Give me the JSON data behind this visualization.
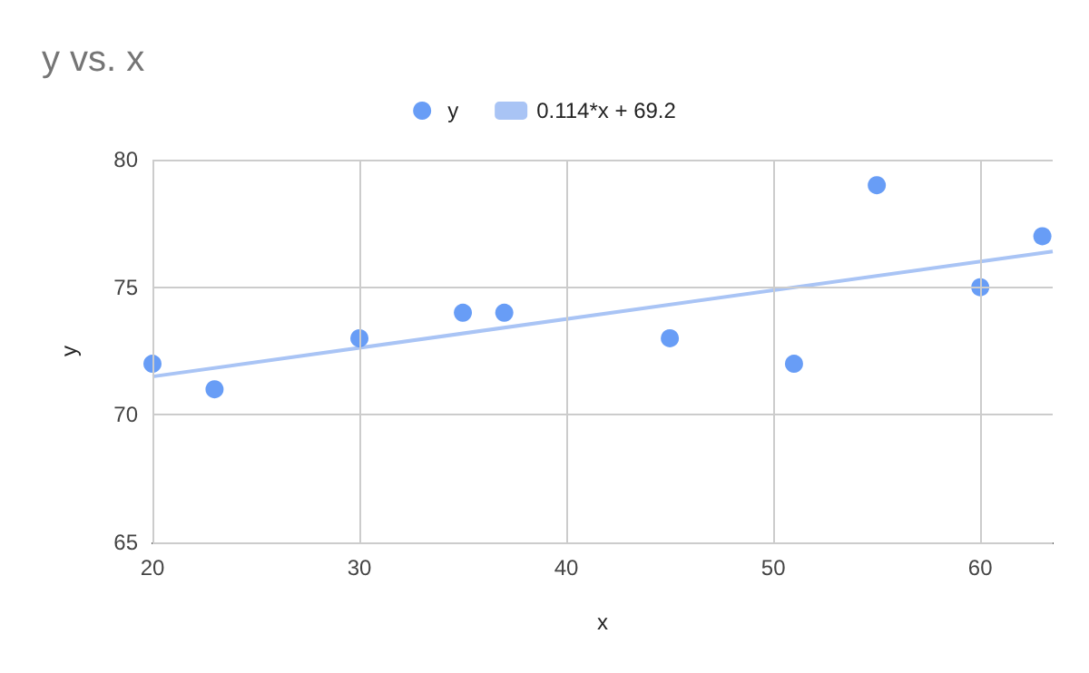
{
  "chart_data": {
    "type": "scatter",
    "title": "y vs. x",
    "xlabel": "x",
    "ylabel": "y",
    "xlim": [
      20,
      63.5
    ],
    "xticks": [
      20,
      30,
      40,
      50,
      60
    ],
    "ylim": [
      65,
      80
    ],
    "yticks": [
      65,
      70,
      75,
      80
    ],
    "grid": true,
    "legend": "top",
    "series": [
      {
        "name": "y",
        "marker": "circle",
        "color": "#4285f4",
        "x": [
          20,
          23,
          30,
          35,
          37,
          45,
          51,
          55,
          60,
          63
        ],
        "values": [
          72,
          71,
          73,
          74,
          74,
          73,
          72,
          79,
          75,
          77
        ]
      },
      {
        "name": "0.114*x + 69.2",
        "type": "line",
        "marker": "none",
        "color": "#a9c4f5",
        "x": [
          20,
          63.5
        ],
        "values": [
          71.5,
          76.4
        ]
      }
    ]
  }
}
